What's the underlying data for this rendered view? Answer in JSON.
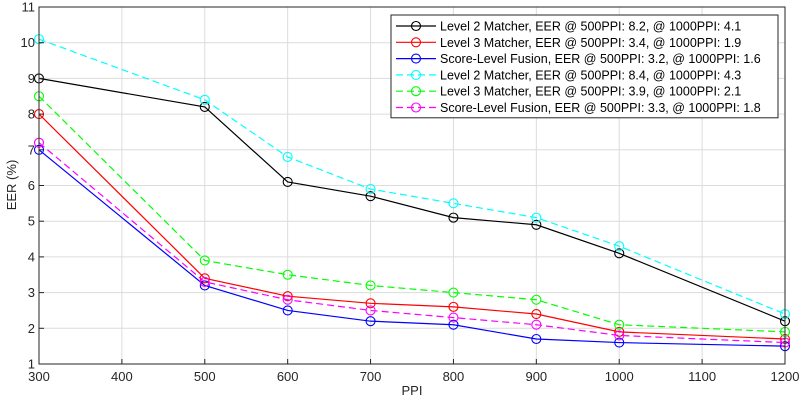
{
  "chart_data": {
    "type": "line",
    "title": "",
    "xlabel": "PPI",
    "ylabel": "EER (%)",
    "xlim": [
      300,
      1200
    ],
    "ylim": [
      1,
      11
    ],
    "xticks": [
      300,
      400,
      500,
      600,
      700,
      800,
      900,
      1000,
      1100,
      1200
    ],
    "yticks": [
      1,
      2,
      3,
      4,
      5,
      6,
      7,
      8,
      9,
      10,
      11
    ],
    "grid": true,
    "legend_position": "top-right",
    "x": [
      300,
      500,
      600,
      700,
      800,
      900,
      1000,
      1200
    ],
    "series": [
      {
        "name": "Level 2 Matcher, EER @ 500PPI: 8.2, @ 1000PPI: 4.1",
        "values": [
          9.0,
          8.2,
          6.1,
          5.7,
          5.1,
          4.9,
          4.1,
          2.2
        ],
        "color": "#000000",
        "dash": "solid"
      },
      {
        "name": "Level 3 Matcher, EER @ 500PPI: 3.4, @ 1000PPI: 1.9",
        "values": [
          8.0,
          3.4,
          2.9,
          2.7,
          2.6,
          2.4,
          1.9,
          1.7
        ],
        "color": "#ff0000",
        "dash": "solid"
      },
      {
        "name": "Score-Level Fusion, EER @ 500PPI: 3.2, @ 1000PPI: 1.6",
        "values": [
          7.0,
          3.2,
          2.5,
          2.2,
          2.1,
          1.7,
          1.6,
          1.5
        ],
        "color": "#0000ff",
        "dash": "solid"
      },
      {
        "name": "Level 2 Matcher, EER @ 500PPI: 8.4, @ 1000PPI: 4.3",
        "values": [
          10.1,
          8.4,
          6.8,
          5.9,
          5.5,
          5.1,
          4.3,
          2.4
        ],
        "color": "#00ffff",
        "dash": "dashed"
      },
      {
        "name": "Level 3 Matcher, EER @ 500PPI: 3.9, @ 1000PPI: 2.1",
        "values": [
          8.5,
          3.9,
          3.5,
          3.2,
          3.0,
          2.8,
          2.1,
          1.9
        ],
        "color": "#00ff00",
        "dash": "dashed"
      },
      {
        "name": "Score-Level Fusion, EER @ 500PPI: 3.3, @ 1000PPI: 1.8",
        "values": [
          7.2,
          3.3,
          2.8,
          2.5,
          2.3,
          2.1,
          1.8,
          1.6
        ],
        "color": "#ff00ff",
        "dash": "dashed"
      }
    ]
  }
}
